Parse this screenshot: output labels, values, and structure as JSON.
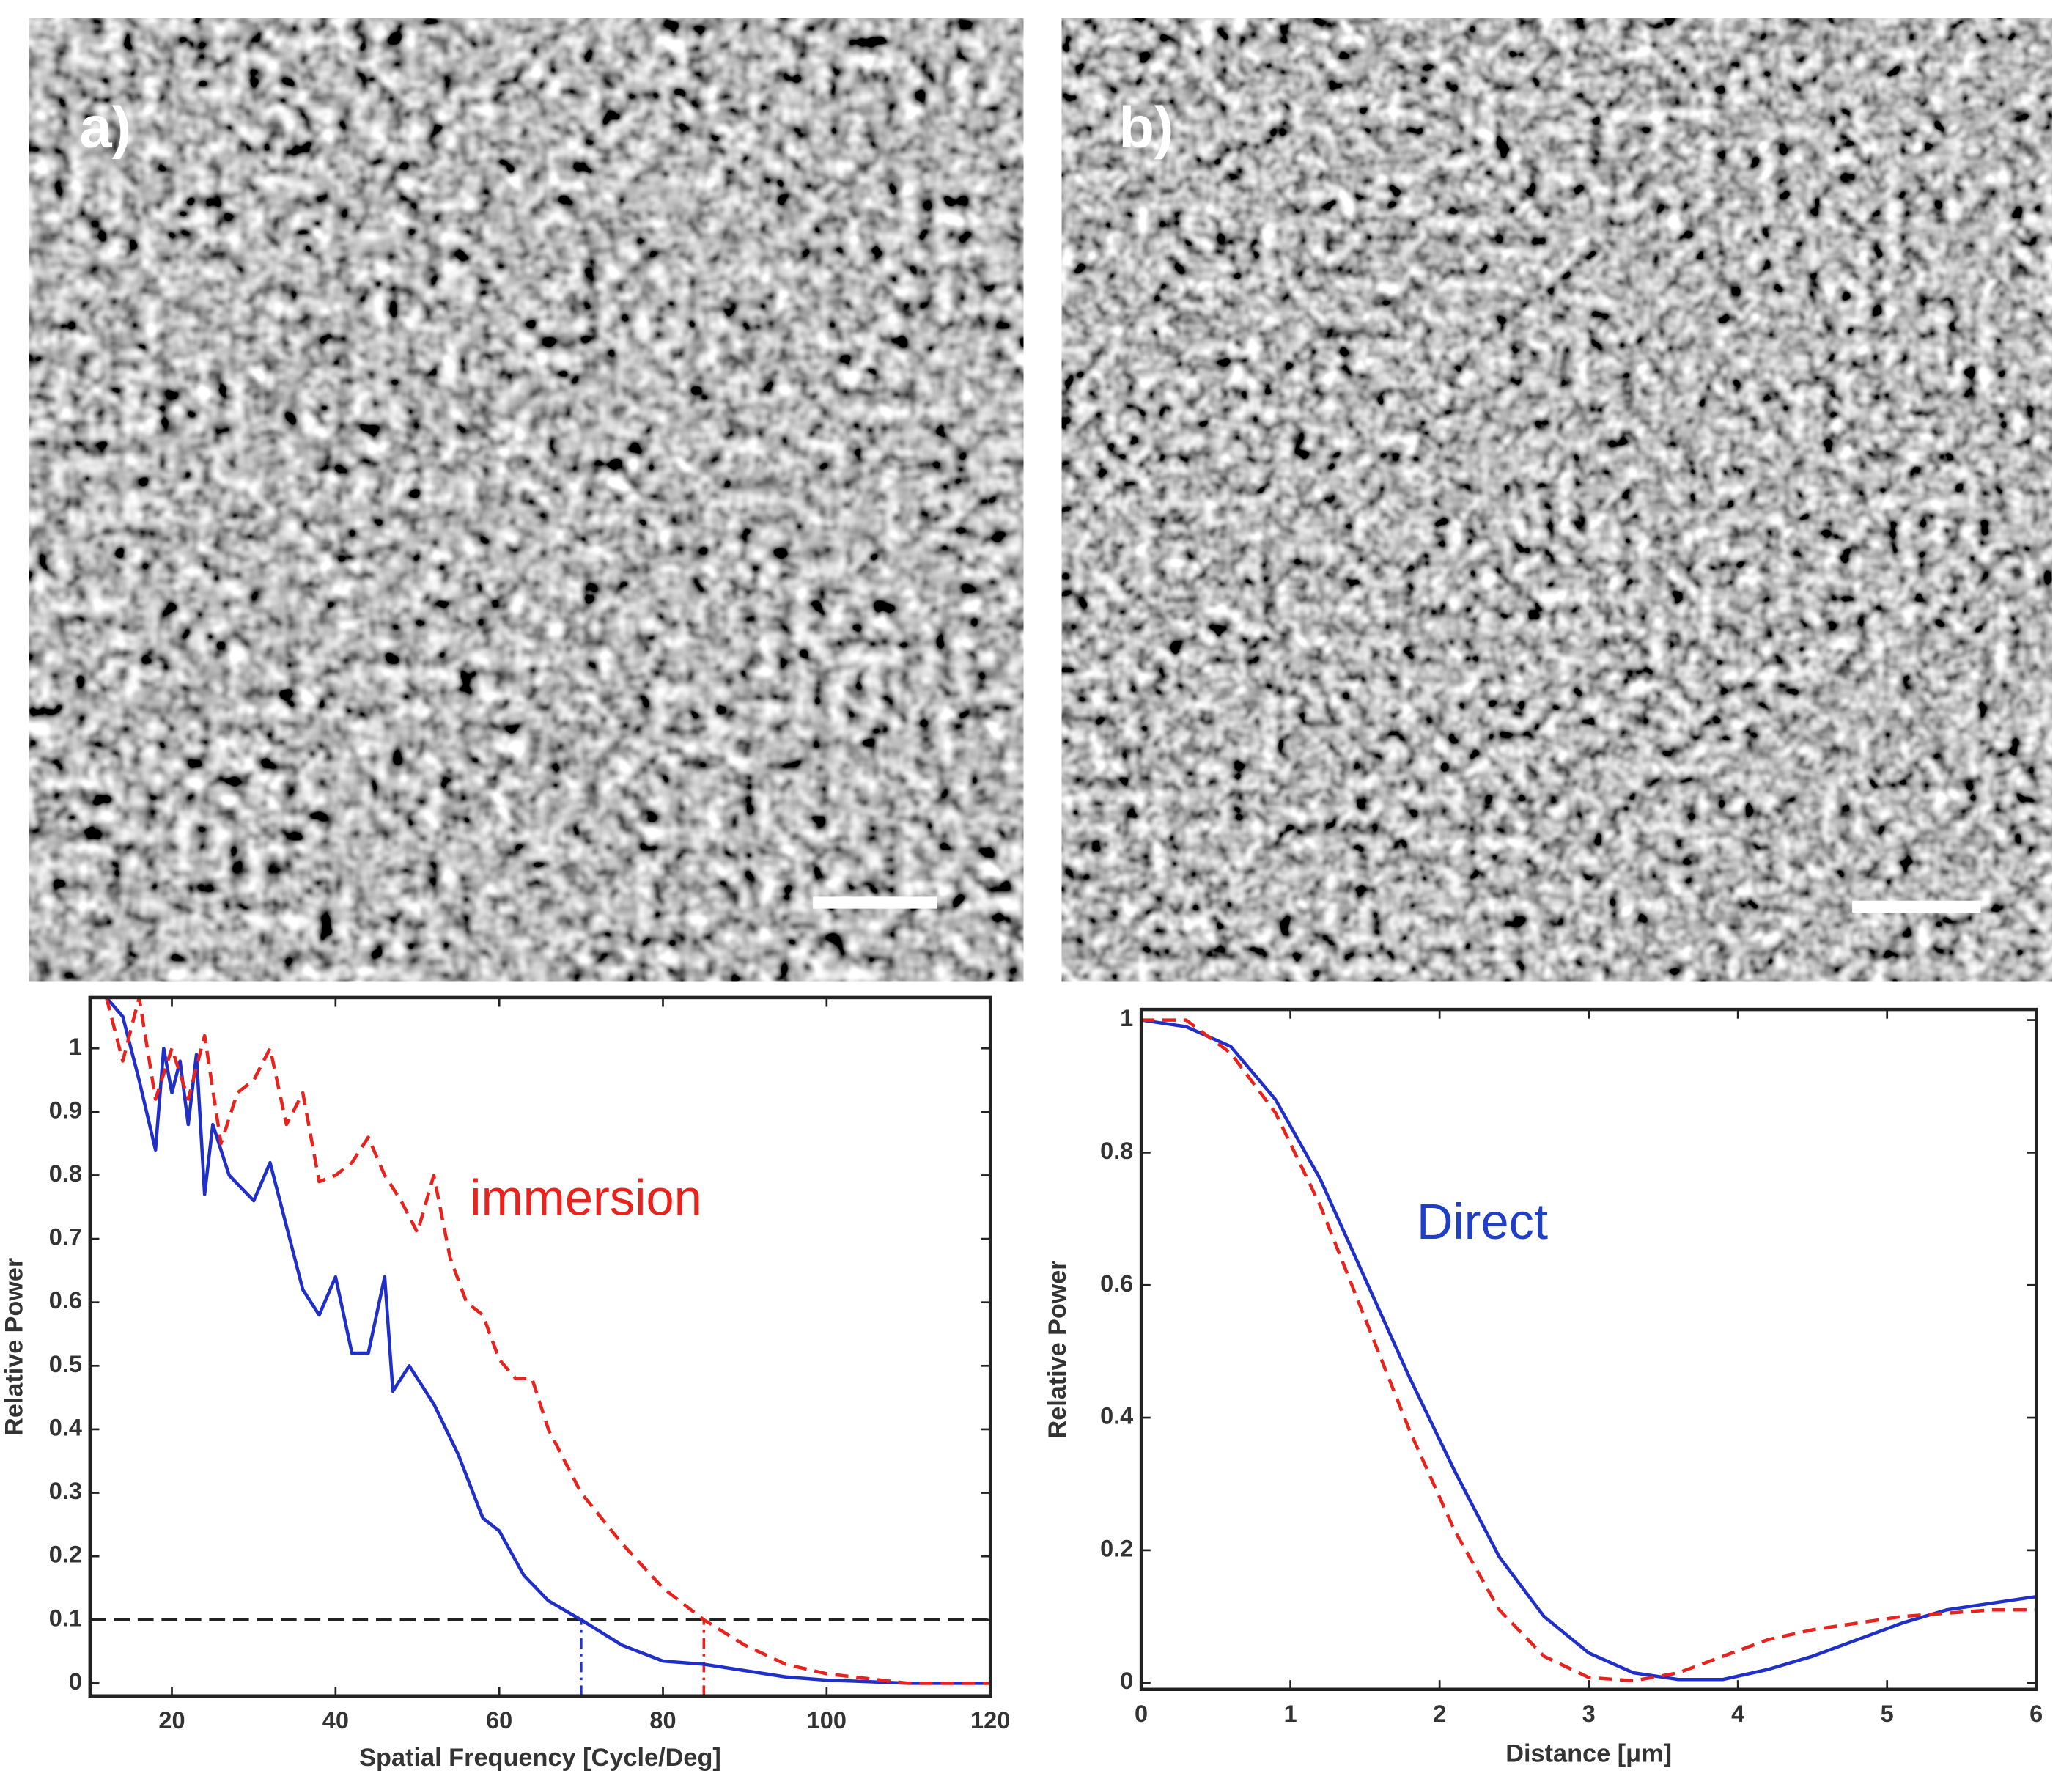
{
  "panels": [
    {
      "label": "a)"
    },
    {
      "label": "b)"
    }
  ],
  "chart_data": [
    {
      "type": "line",
      "xlabel": "Spatial Frequency [Cycle/Deg]",
      "ylabel": "Relative Power",
      "annotation": "immersion",
      "annotation_color": "#e8221c",
      "xlim": [
        10,
        120
      ],
      "ylim": [
        -0.02,
        1.08
      ],
      "xticks": [
        20,
        40,
        60,
        80,
        100,
        120
      ],
      "yticks": [
        0,
        0.1,
        0.2,
        0.3,
        0.4,
        0.5,
        0.6,
        0.7,
        0.8,
        0.9,
        1
      ],
      "hline": {
        "y": 0.1,
        "color": "#222222"
      },
      "vlines": [
        {
          "x": 70,
          "color": "#2233cc"
        },
        {
          "x": 85,
          "color": "#e8221c"
        }
      ],
      "series": [
        {
          "color": "#1f2fc8",
          "dashed": false,
          "x": [
            12,
            14,
            16,
            18,
            19,
            20,
            21,
            22,
            23,
            24,
            25,
            27,
            30,
            32,
            34,
            36,
            38,
            40,
            42,
            44,
            46,
            47,
            49,
            52,
            55,
            58,
            60,
            63,
            66,
            70,
            75,
            80,
            85,
            90,
            95,
            100,
            110,
            120
          ],
          "values": [
            1.08,
            1.05,
            0.95,
            0.84,
            1.0,
            0.93,
            0.98,
            0.88,
            0.99,
            0.77,
            0.88,
            0.8,
            0.76,
            0.82,
            0.72,
            0.62,
            0.58,
            0.64,
            0.52,
            0.52,
            0.64,
            0.46,
            0.5,
            0.44,
            0.36,
            0.26,
            0.24,
            0.17,
            0.13,
            0.1,
            0.06,
            0.035,
            0.03,
            0.02,
            0.01,
            0.005,
            0,
            0
          ]
        },
        {
          "color": "#e8221c",
          "dashed": true,
          "x": [
            12,
            14,
            16,
            18,
            20,
            22,
            24,
            26,
            28,
            30,
            32,
            34,
            36,
            38,
            40,
            42,
            44,
            46,
            48,
            50,
            52,
            54,
            56,
            58,
            60,
            62,
            64,
            66,
            70,
            75,
            80,
            85,
            90,
            95,
            100,
            110,
            120
          ],
          "values": [
            1.08,
            0.98,
            1.08,
            0.92,
            1.0,
            0.92,
            1.02,
            0.85,
            0.93,
            0.95,
            1.0,
            0.88,
            0.93,
            0.79,
            0.8,
            0.82,
            0.86,
            0.8,
            0.76,
            0.71,
            0.8,
            0.67,
            0.6,
            0.58,
            0.51,
            0.48,
            0.48,
            0.4,
            0.3,
            0.22,
            0.15,
            0.1,
            0.06,
            0.03,
            0.015,
            0,
            0
          ]
        }
      ]
    },
    {
      "type": "line",
      "xlabel": "Distance [μm]",
      "ylabel": "Relative Power",
      "annotation": "Direct",
      "annotation_color": "#1f3fc8",
      "xlim": [
        0,
        6
      ],
      "ylim": [
        -0.01,
        1.016
      ],
      "xticks": [
        0,
        1,
        2,
        3,
        4,
        5,
        6
      ],
      "yticks": [
        0,
        0.2,
        0.4,
        0.6,
        0.8,
        1
      ],
      "x": [
        0,
        0.3,
        0.6,
        0.9,
        1.2,
        1.5,
        1.8,
        2.1,
        2.4,
        2.7,
        3.0,
        3.3,
        3.6,
        3.9,
        4.2,
        4.5,
        4.8,
        5.1,
        5.4,
        5.7,
        6
      ],
      "series": [
        {
          "color": "#1f2fc8",
          "dashed": false,
          "values": [
            1,
            0.99,
            0.96,
            0.88,
            0.76,
            0.61,
            0.46,
            0.32,
            0.19,
            0.1,
            0.045,
            0.015,
            0.005,
            0.005,
            0.02,
            0.04,
            0.065,
            0.09,
            0.11,
            0.12,
            0.13
          ]
        },
        {
          "color": "#e8221c",
          "dashed": true,
          "values": [
            1,
            1,
            0.95,
            0.86,
            0.72,
            0.55,
            0.38,
            0.23,
            0.11,
            0.04,
            0.008,
            0.003,
            0.015,
            0.04,
            0.065,
            0.08,
            0.09,
            0.1,
            0.105,
            0.11,
            0.11
          ]
        }
      ]
    }
  ]
}
